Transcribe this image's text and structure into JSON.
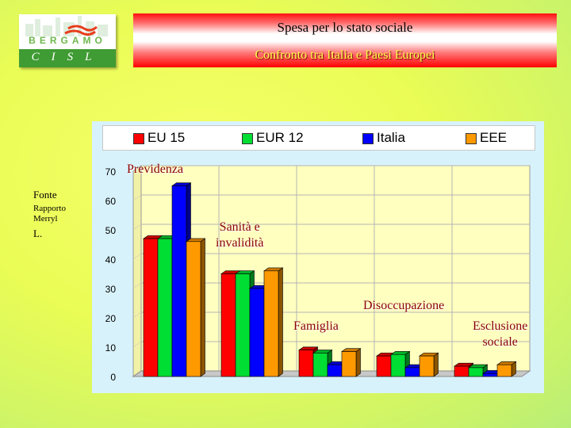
{
  "logo": {
    "line1": "BERGAMO",
    "line2": "CISL"
  },
  "banner": {
    "title": "Spesa per lo stato sociale",
    "subtitle": "Confronto tra Italia e Paesi Europei"
  },
  "source": {
    "label": "Fonte",
    "name": "Rapporto Merryl",
    "initial": "L."
  },
  "chart_data": {
    "type": "bar",
    "categories": [
      "Previdenza",
      "Sanità e invalidità",
      "Famiglia",
      "Disoccupazione",
      "Esclusione sociale"
    ],
    "category_labels": [
      "Previdenza",
      "Sanità e\ninvalidità",
      "Famiglia",
      "Disoccupazione",
      "Esclusione\nsociale"
    ],
    "series": [
      {
        "name": "EU 15",
        "color": "#ff0000",
        "values": [
          47,
          35,
          9,
          7,
          3.5
        ]
      },
      {
        "name": "EUR 12",
        "color": "#00dd33",
        "values": [
          47,
          35,
          8,
          7.5,
          3
        ]
      },
      {
        "name": "Italia",
        "color": "#0000ff",
        "values": [
          65,
          30,
          4,
          3,
          1
        ]
      },
      {
        "name": "EEE",
        "color": "#ff9900",
        "values": [
          46,
          36,
          8.5,
          7,
          4
        ]
      }
    ],
    "yticks": [
      0,
      10,
      20,
      30,
      40,
      50,
      60,
      70
    ],
    "ylim": [
      0,
      70
    ],
    "legend": "top",
    "grid": true
  }
}
